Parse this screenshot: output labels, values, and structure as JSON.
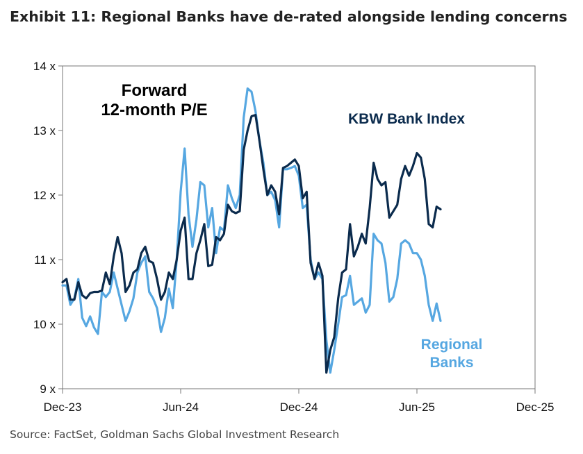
{
  "header": {
    "title": "Exhibit 11: Regional Banks have de-rated alongside lending concerns"
  },
  "footer": {
    "source": "Source: FactSet, Goldman Sachs Global Investment Research"
  },
  "colors": {
    "kbw": "#0b2b4d",
    "regional": "#56a7e1",
    "axis": "#777777"
  },
  "chart_data": {
    "type": "line",
    "title": "Forward 12-month P/E",
    "title_lines": [
      "Forward",
      "12-month P/E"
    ],
    "xlabel": "",
    "ylabel": "",
    "ylim": [
      9,
      14
    ],
    "xlim": [
      0,
      24
    ],
    "x_ticks": [
      {
        "x": 0,
        "label": "Dec-23"
      },
      {
        "x": 6,
        "label": "Jun-24"
      },
      {
        "x": 12,
        "label": "Dec-24"
      },
      {
        "x": 18,
        "label": "Jun-25"
      },
      {
        "x": 24,
        "label": "Dec-25"
      }
    ],
    "y_ticks": [
      {
        "y": 9,
        "label": "9 x"
      },
      {
        "y": 10,
        "label": "10 x"
      },
      {
        "y": 11,
        "label": "11 x"
      },
      {
        "y": 12,
        "label": "12 x"
      },
      {
        "y": 13,
        "label": "13 x"
      },
      {
        "y": 14,
        "label": "14 x"
      }
    ],
    "grid": false,
    "series": [
      {
        "name": "KBW Bank Index",
        "label_lines": [
          "KBW Bank Index"
        ],
        "color": "#0b2b4d",
        "points": [
          [
            0.0,
            10.65
          ],
          [
            0.2,
            10.7
          ],
          [
            0.4,
            10.38
          ],
          [
            0.6,
            10.38
          ],
          [
            0.8,
            10.65
          ],
          [
            1.0,
            10.45
          ],
          [
            1.2,
            10.4
          ],
          [
            1.4,
            10.48
          ],
          [
            1.6,
            10.5
          ],
          [
            1.8,
            10.5
          ],
          [
            2.0,
            10.52
          ],
          [
            2.2,
            10.8
          ],
          [
            2.4,
            10.62
          ],
          [
            2.6,
            11.05
          ],
          [
            2.8,
            11.35
          ],
          [
            3.0,
            11.1
          ],
          [
            3.2,
            10.5
          ],
          [
            3.4,
            10.6
          ],
          [
            3.6,
            10.8
          ],
          [
            3.8,
            10.85
          ],
          [
            4.0,
            11.1
          ],
          [
            4.2,
            11.2
          ],
          [
            4.4,
            10.98
          ],
          [
            4.6,
            10.95
          ],
          [
            4.8,
            10.7
          ],
          [
            5.0,
            10.38
          ],
          [
            5.2,
            10.5
          ],
          [
            5.4,
            10.8
          ],
          [
            5.6,
            10.7
          ],
          [
            5.8,
            11.0
          ],
          [
            6.0,
            11.45
          ],
          [
            6.2,
            11.65
          ],
          [
            6.4,
            10.7
          ],
          [
            6.6,
            10.7
          ],
          [
            6.8,
            11.1
          ],
          [
            7.0,
            11.3
          ],
          [
            7.2,
            11.55
          ],
          [
            7.4,
            10.9
          ],
          [
            7.6,
            10.92
          ],
          [
            7.8,
            11.35
          ],
          [
            8.0,
            11.3
          ],
          [
            8.2,
            11.4
          ],
          [
            8.4,
            11.85
          ],
          [
            8.6,
            11.75
          ],
          [
            8.8,
            11.72
          ],
          [
            9.0,
            11.75
          ],
          [
            9.2,
            12.7
          ],
          [
            9.4,
            13.0
          ],
          [
            9.6,
            13.22
          ],
          [
            9.8,
            13.24
          ],
          [
            10.0,
            12.85
          ],
          [
            10.2,
            12.4
          ],
          [
            10.4,
            12.0
          ],
          [
            10.6,
            12.15
          ],
          [
            10.8,
            12.05
          ],
          [
            11.0,
            11.7
          ],
          [
            11.2,
            12.42
          ],
          [
            11.4,
            12.45
          ],
          [
            11.6,
            12.5
          ],
          [
            11.8,
            12.55
          ],
          [
            12.0,
            12.45
          ],
          [
            12.2,
            11.95
          ],
          [
            12.4,
            12.05
          ],
          [
            12.6,
            10.95
          ],
          [
            12.8,
            10.7
          ],
          [
            13.0,
            10.95
          ],
          [
            13.2,
            10.75
          ],
          [
            13.4,
            9.25
          ],
          [
            13.6,
            9.6
          ],
          [
            13.8,
            9.8
          ],
          [
            14.0,
            10.4
          ],
          [
            14.2,
            10.8
          ],
          [
            14.4,
            10.85
          ],
          [
            14.6,
            11.55
          ],
          [
            14.8,
            11.05
          ],
          [
            15.0,
            11.2
          ],
          [
            15.2,
            11.4
          ],
          [
            15.4,
            11.25
          ],
          [
            15.6,
            11.8
          ],
          [
            15.8,
            12.5
          ],
          [
            16.0,
            12.25
          ],
          [
            16.2,
            12.15
          ],
          [
            16.4,
            12.2
          ],
          [
            16.6,
            11.65
          ],
          [
            16.8,
            11.75
          ],
          [
            17.0,
            11.85
          ],
          [
            17.2,
            12.25
          ],
          [
            17.4,
            12.45
          ],
          [
            17.6,
            12.3
          ],
          [
            17.8,
            12.45
          ],
          [
            18.0,
            12.65
          ],
          [
            18.2,
            12.58
          ],
          [
            18.4,
            12.25
          ],
          [
            18.6,
            11.55
          ],
          [
            18.8,
            11.5
          ],
          [
            19.0,
            11.82
          ],
          [
            19.2,
            11.78
          ]
        ]
      },
      {
        "name": "Regional Banks",
        "label_lines": [
          "Regional",
          "Banks"
        ],
        "color": "#56a7e1",
        "points": [
          [
            0.0,
            10.6
          ],
          [
            0.2,
            10.6
          ],
          [
            0.4,
            10.3
          ],
          [
            0.6,
            10.4
          ],
          [
            0.8,
            10.7
          ],
          [
            1.0,
            10.1
          ],
          [
            1.2,
            9.97
          ],
          [
            1.4,
            10.12
          ],
          [
            1.6,
            9.95
          ],
          [
            1.8,
            9.85
          ],
          [
            2.0,
            10.5
          ],
          [
            2.2,
            10.42
          ],
          [
            2.4,
            10.5
          ],
          [
            2.6,
            10.8
          ],
          [
            2.8,
            10.55
          ],
          [
            3.0,
            10.3
          ],
          [
            3.2,
            10.05
          ],
          [
            3.4,
            10.2
          ],
          [
            3.6,
            10.4
          ],
          [
            3.8,
            10.8
          ],
          [
            4.0,
            10.95
          ],
          [
            4.2,
            11.05
          ],
          [
            4.4,
            10.5
          ],
          [
            4.6,
            10.4
          ],
          [
            4.8,
            10.25
          ],
          [
            5.0,
            9.88
          ],
          [
            5.2,
            10.1
          ],
          [
            5.4,
            10.55
          ],
          [
            5.6,
            10.25
          ],
          [
            5.8,
            11.0
          ],
          [
            6.0,
            12.05
          ],
          [
            6.2,
            12.72
          ],
          [
            6.4,
            11.7
          ],
          [
            6.6,
            11.2
          ],
          [
            6.8,
            11.62
          ],
          [
            7.0,
            12.2
          ],
          [
            7.2,
            12.15
          ],
          [
            7.4,
            11.5
          ],
          [
            7.6,
            11.8
          ],
          [
            7.8,
            11.1
          ],
          [
            8.0,
            11.5
          ],
          [
            8.2,
            11.45
          ],
          [
            8.4,
            12.15
          ],
          [
            8.6,
            11.95
          ],
          [
            8.8,
            11.8
          ],
          [
            9.0,
            12.0
          ],
          [
            9.2,
            13.2
          ],
          [
            9.4,
            13.65
          ],
          [
            9.6,
            13.6
          ],
          [
            9.8,
            13.3
          ],
          [
            10.0,
            12.85
          ],
          [
            10.2,
            12.5
          ],
          [
            10.4,
            12.0
          ],
          [
            10.6,
            12.05
          ],
          [
            10.8,
            11.92
          ],
          [
            11.0,
            11.5
          ],
          [
            11.2,
            12.4
          ],
          [
            11.4,
            12.4
          ],
          [
            11.6,
            12.42
          ],
          [
            11.8,
            12.45
          ],
          [
            12.0,
            12.3
          ],
          [
            12.2,
            11.8
          ],
          [
            12.4,
            11.85
          ],
          [
            12.6,
            11.0
          ],
          [
            12.8,
            10.7
          ],
          [
            13.0,
            10.8
          ],
          [
            13.2,
            10.7
          ],
          [
            13.4,
            9.75
          ],
          [
            13.6,
            9.25
          ],
          [
            13.8,
            9.6
          ],
          [
            14.0,
            10.0
          ],
          [
            14.2,
            10.42
          ],
          [
            14.4,
            10.45
          ],
          [
            14.6,
            10.75
          ],
          [
            14.8,
            10.3
          ],
          [
            15.0,
            10.35
          ],
          [
            15.2,
            10.4
          ],
          [
            15.4,
            10.18
          ],
          [
            15.6,
            10.3
          ],
          [
            15.8,
            11.4
          ],
          [
            16.0,
            11.3
          ],
          [
            16.2,
            11.25
          ],
          [
            16.4,
            10.95
          ],
          [
            16.6,
            10.35
          ],
          [
            16.8,
            10.42
          ],
          [
            17.0,
            10.7
          ],
          [
            17.2,
            11.25
          ],
          [
            17.4,
            11.3
          ],
          [
            17.6,
            11.25
          ],
          [
            17.8,
            11.1
          ],
          [
            18.0,
            11.1
          ],
          [
            18.2,
            11.0
          ],
          [
            18.4,
            10.75
          ],
          [
            18.6,
            10.3
          ],
          [
            18.8,
            10.05
          ],
          [
            19.0,
            10.32
          ],
          [
            19.2,
            10.05
          ]
        ]
      }
    ]
  }
}
